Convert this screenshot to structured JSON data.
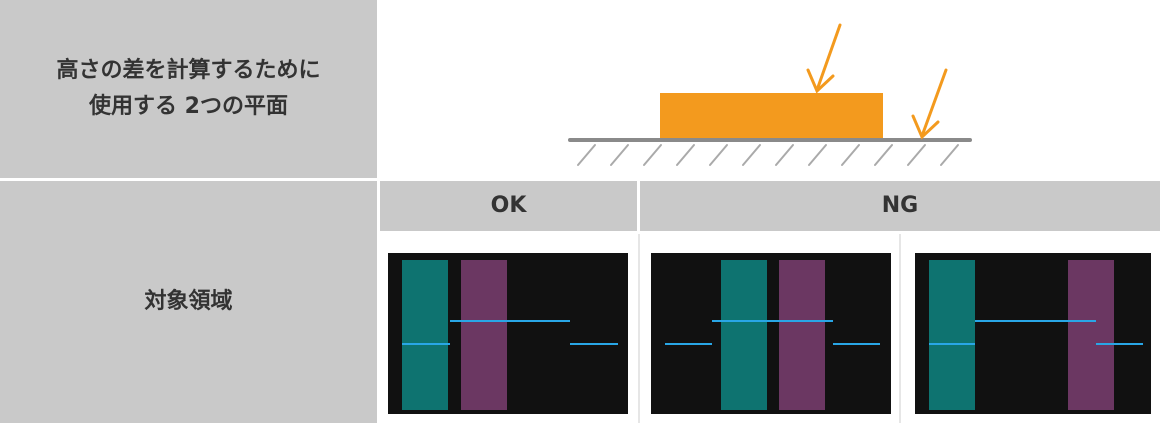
{
  "table": {
    "rows": [
      {
        "header": [
          "高さの差を計算するために",
          "使用する 2つの平面"
        ]
      },
      {
        "header": "対象領域",
        "columns": [
          "OK",
          "NG"
        ]
      }
    ]
  }
}
